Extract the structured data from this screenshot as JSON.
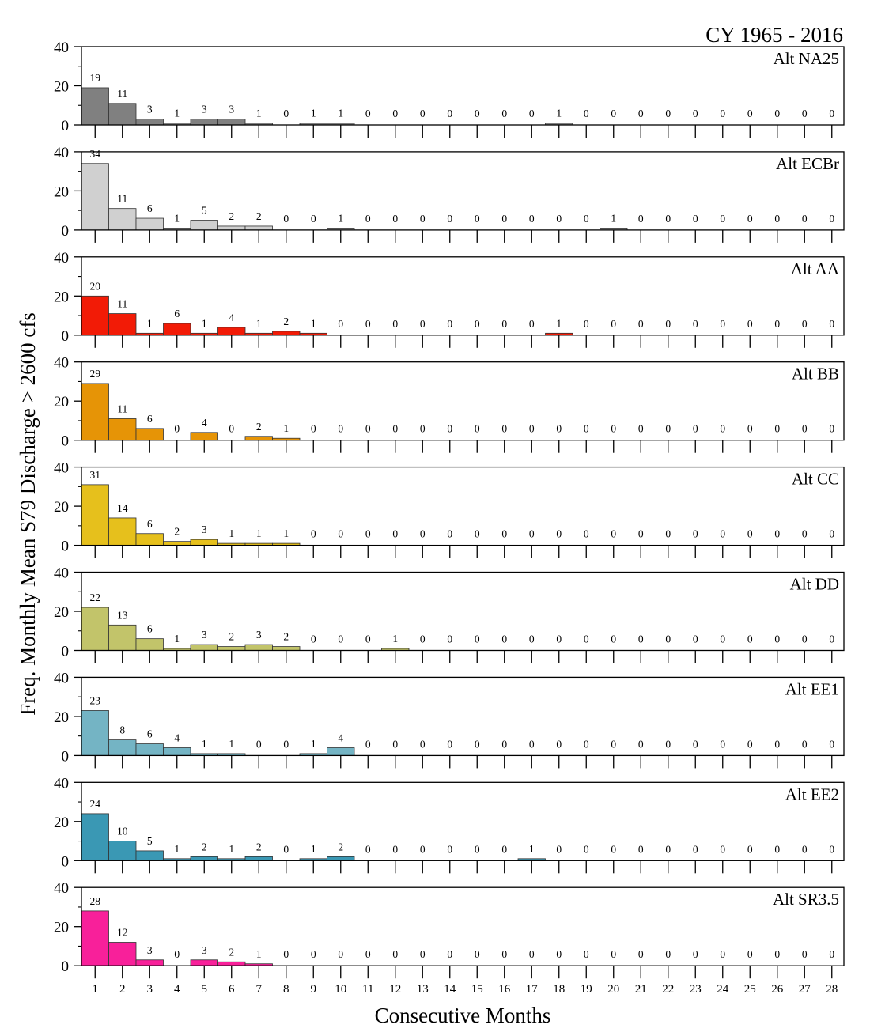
{
  "chart_data": {
    "type": "bar",
    "title": "CY 1965 - 2016",
    "xlabel": "Consecutive Months",
    "ylabel": "Freq. Monthly Mean S79 Discharge > 2600 cfs",
    "categories": [
      "1",
      "2",
      "3",
      "4",
      "5",
      "6",
      "7",
      "8",
      "9",
      "10",
      "11",
      "12",
      "13",
      "14",
      "15",
      "16",
      "17",
      "18",
      "19",
      "20",
      "21",
      "22",
      "23",
      "24",
      "25",
      "26",
      "27",
      "28"
    ],
    "ylim": [
      0,
      40
    ],
    "yticks": [
      0,
      20,
      40
    ],
    "grid": false,
    "series": [
      {
        "name": "Alt NA25",
        "color": "#808080",
        "values": [
          19,
          11,
          3,
          1,
          3,
          3,
          1,
          0,
          1,
          1,
          0,
          0,
          0,
          0,
          0,
          0,
          0,
          1,
          0,
          0,
          0,
          0,
          0,
          0,
          0,
          0,
          0,
          0
        ]
      },
      {
        "name": "Alt ECBr",
        "color": "#d0d0d0",
        "values": [
          34,
          11,
          6,
          1,
          5,
          2,
          2,
          0,
          0,
          1,
          0,
          0,
          0,
          0,
          0,
          0,
          0,
          0,
          0,
          1,
          0,
          0,
          0,
          0,
          0,
          0,
          0,
          0
        ]
      },
      {
        "name": "Alt AA",
        "color": "#f21b06",
        "values": [
          20,
          11,
          1,
          6,
          1,
          4,
          1,
          2,
          1,
          0,
          0,
          0,
          0,
          0,
          0,
          0,
          0,
          1,
          0,
          0,
          0,
          0,
          0,
          0,
          0,
          0,
          0,
          0
        ]
      },
      {
        "name": "Alt BB",
        "color": "#e69406",
        "values": [
          29,
          11,
          6,
          0,
          4,
          0,
          2,
          1,
          0,
          0,
          0,
          0,
          0,
          0,
          0,
          0,
          0,
          0,
          0,
          0,
          0,
          0,
          0,
          0,
          0,
          0,
          0,
          0
        ]
      },
      {
        "name": "Alt CC",
        "color": "#e6c01c",
        "values": [
          31,
          14,
          6,
          2,
          3,
          1,
          1,
          1,
          0,
          0,
          0,
          0,
          0,
          0,
          0,
          0,
          0,
          0,
          0,
          0,
          0,
          0,
          0,
          0,
          0,
          0,
          0,
          0
        ]
      },
      {
        "name": "Alt DD",
        "color": "#c2c46a",
        "values": [
          22,
          13,
          6,
          1,
          3,
          2,
          3,
          2,
          0,
          0,
          0,
          1,
          0,
          0,
          0,
          0,
          0,
          0,
          0,
          0,
          0,
          0,
          0,
          0,
          0,
          0,
          0,
          0
        ]
      },
      {
        "name": "Alt EE1",
        "color": "#74b4c4",
        "values": [
          23,
          8,
          6,
          4,
          1,
          1,
          0,
          0,
          1,
          4,
          0,
          0,
          0,
          0,
          0,
          0,
          0,
          0,
          0,
          0,
          0,
          0,
          0,
          0,
          0,
          0,
          0,
          0
        ]
      },
      {
        "name": "Alt EE2",
        "color": "#3a98b4",
        "values": [
          24,
          10,
          5,
          1,
          2,
          1,
          2,
          0,
          1,
          2,
          0,
          0,
          0,
          0,
          0,
          0,
          1,
          0,
          0,
          0,
          0,
          0,
          0,
          0,
          0,
          0,
          0,
          0
        ]
      },
      {
        "name": "Alt SR3.5",
        "color": "#f8209a",
        "values": [
          28,
          12,
          3,
          0,
          3,
          2,
          1,
          0,
          0,
          0,
          0,
          0,
          0,
          0,
          0,
          0,
          0,
          0,
          0,
          0,
          0,
          0,
          0,
          0,
          0,
          0,
          0,
          0
        ]
      }
    ]
  }
}
